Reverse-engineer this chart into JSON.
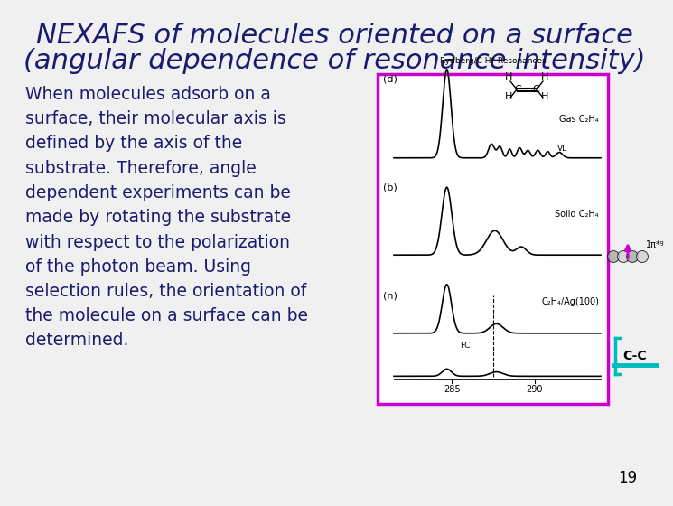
{
  "title_line1": "NEXAFS of molecules oriented on a surface",
  "title_line2": "(angular dependence of resonance intensity)",
  "title_color": "#1a1a6e",
  "title_fontsize": 22,
  "body_text": "When molecules adsorb on a\nsurface, their molecular axis is\ndefined by the axis of the\nsubstrate. Therefore, angle\ndependent experiments can be\nmade by rotating the substrate\nwith respect to the polarization\nof the photon beam. Using\nselection rules, the orientation of\nthe molecule on a surface can be\ndetermined.",
  "body_text_color": "#1a1a6e",
  "body_fontsize": 13.5,
  "background_color": "#f0f0f0",
  "page_number": "19",
  "box_color": "#cc00cc",
  "box_label_above": "Rydberg/C H* Resonances",
  "panel_d_label": "(d)",
  "panel_b_label": "(b)",
  "panel_n_label": "(n)",
  "label_gas": "Gas C₂H₄",
  "label_solid": "Solid C₂H₄",
  "label_surface": "C₂H₄/Ag(100)",
  "label_vl": "VL",
  "label_fc": "FC",
  "label_cc": "C-C",
  "cc_color": "#00bbbb",
  "pi_arrow_color": "#cc00cc",
  "pi_label": "1π*ᵍ",
  "x_tick_285": "285",
  "x_tick_290": "290"
}
